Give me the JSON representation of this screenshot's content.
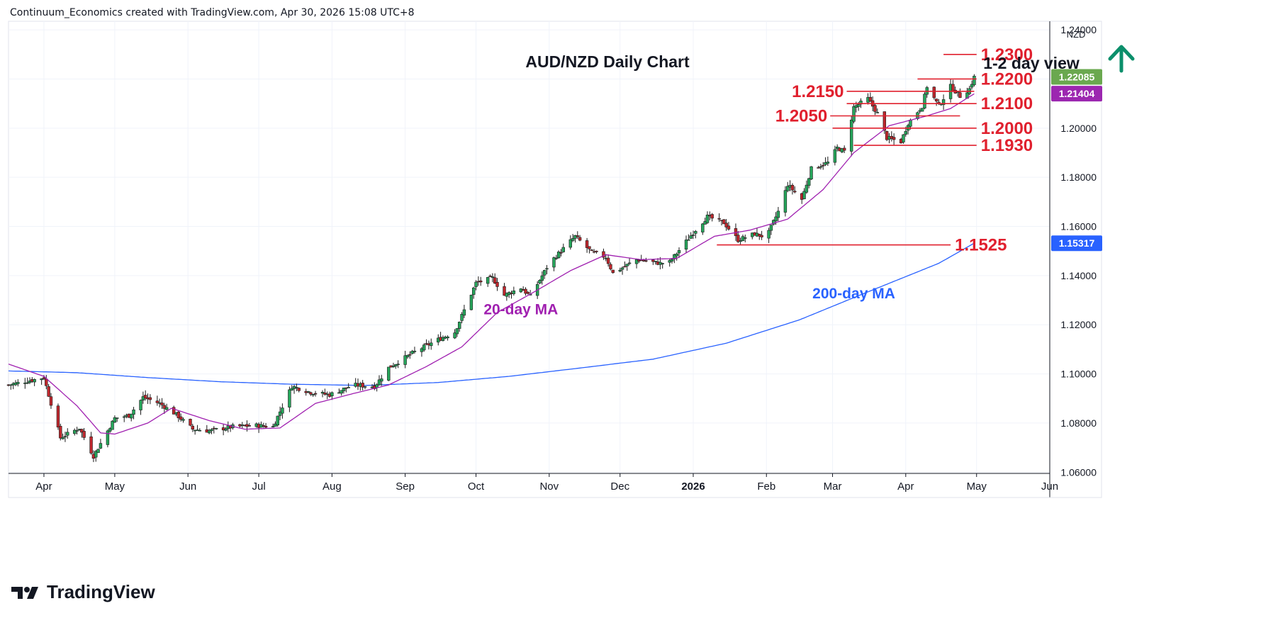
{
  "attribution": "Continuum_Economics created with TradingView.com, Apr 30, 2026 15:08 UTC+8",
  "brand": {
    "name": "TradingView",
    "icon": "tradingview-logo-icon"
  },
  "currency": "NZD",
  "colors": {
    "up": "#26a65b",
    "down": "#c0272d",
    "ma20": "#a020b0",
    "ma200": "#2962ff",
    "level": "#e0202e",
    "arrow": "#0b8f6b",
    "last_price_bg": "#6aa84f",
    "ma20_tag_bg": "#9c27b0",
    "ma200_tag_bg": "#2962ff"
  },
  "chart_data": {
    "type": "candlestick",
    "title": "AUD/NZD Daily Chart",
    "view_label": "1-2 day view",
    "view_direction": "up",
    "x_ticks": [
      "Apr",
      "May",
      "Jun",
      "Jul",
      "Aug",
      "Sep",
      "Oct",
      "Nov",
      "Dec",
      "2026",
      "Feb",
      "Mar",
      "Apr",
      "May",
      "Jun"
    ],
    "x_tick_dates": [
      "2025-04-01",
      "2025-05-01",
      "2025-06-01",
      "2025-07-01",
      "2025-08-01",
      "2025-09-01",
      "2025-10-01",
      "2025-11-01",
      "2025-12-01",
      "2026-01-01",
      "2026-02-01",
      "2026-03-01",
      "2026-04-01",
      "2026-05-01",
      "2026-06-01"
    ],
    "x_range": [
      "2025-03-17",
      "2026-06-01"
    ],
    "y_ticks": [
      "1.24000",
      "1.22000",
      "1.20000",
      "1.18000",
      "1.16000",
      "1.14000",
      "1.12000",
      "1.10000",
      "1.08000",
      "1.06000"
    ],
    "ylim": [
      1.0595,
      1.2435
    ],
    "grid": true,
    "close_anchors": [
      [
        "2025-03-17",
        1.0955
      ],
      [
        "2025-04-01",
        1.0985
      ],
      [
        "2025-04-08",
        1.074
      ],
      [
        "2025-04-16",
        1.078
      ],
      [
        "2025-04-22",
        1.0665
      ],
      [
        "2025-05-01",
        1.082
      ],
      [
        "2025-05-07",
        1.083
      ],
      [
        "2025-05-13",
        1.0905
      ],
      [
        "2025-05-20",
        1.088
      ],
      [
        "2025-05-27",
        1.0835
      ],
      [
        "2025-06-03",
        1.0775
      ],
      [
        "2025-06-10",
        1.0768
      ],
      [
        "2025-06-20",
        1.0785
      ],
      [
        "2025-06-30",
        1.079
      ],
      [
        "2025-07-07",
        1.0785
      ],
      [
        "2025-07-15",
        1.095
      ],
      [
        "2025-07-23",
        1.0925
      ],
      [
        "2025-07-31",
        1.0915
      ],
      [
        "2025-08-10",
        1.0955
      ],
      [
        "2025-08-19",
        1.0948
      ],
      [
        "2025-08-25",
        1.1025
      ],
      [
        "2025-09-05",
        1.109
      ],
      [
        "2025-09-15",
        1.114
      ],
      [
        "2025-09-22",
        1.117
      ],
      [
        "2025-10-01",
        1.137
      ],
      [
        "2025-10-08",
        1.139
      ],
      [
        "2025-10-13",
        1.132
      ],
      [
        "2025-10-20",
        1.135
      ],
      [
        "2025-10-24",
        1.1315
      ],
      [
        "2025-11-01",
        1.145
      ],
      [
        "2025-11-07",
        1.151
      ],
      [
        "2025-11-12",
        1.156
      ],
      [
        "2025-11-19",
        1.1495
      ],
      [
        "2025-11-25",
        1.1475
      ],
      [
        "2025-11-28",
        1.141
      ],
      [
        "2025-12-08",
        1.1465
      ],
      [
        "2025-12-18",
        1.145
      ],
      [
        "2025-12-22",
        1.1455
      ],
      [
        "2026-01-01",
        1.1575
      ],
      [
        "2026-01-07",
        1.164
      ],
      [
        "2026-01-14",
        1.1615
      ],
      [
        "2026-01-20",
        1.1545
      ],
      [
        "2026-01-27",
        1.157
      ],
      [
        "2026-02-01",
        1.1555
      ],
      [
        "2026-02-06",
        1.166
      ],
      [
        "2026-02-10",
        1.177
      ],
      [
        "2026-02-16",
        1.171
      ],
      [
        "2026-02-20",
        1.1835
      ],
      [
        "2026-02-27",
        1.186
      ],
      [
        "2026-03-03",
        1.192
      ],
      [
        "2026-03-06",
        1.1905
      ],
      [
        "2026-03-10",
        1.2085
      ],
      [
        "2026-03-16",
        1.212
      ],
      [
        "2026-03-20",
        1.206
      ],
      [
        "2026-03-24",
        1.196
      ],
      [
        "2026-03-30",
        1.1945
      ],
      [
        "2026-04-02",
        1.202
      ],
      [
        "2026-04-08",
        1.209
      ],
      [
        "2026-04-10",
        1.217
      ],
      [
        "2026-04-15",
        1.209
      ],
      [
        "2026-04-20",
        1.217
      ],
      [
        "2026-04-24",
        1.213
      ],
      [
        "2026-04-28",
        1.216
      ],
      [
        "2026-04-30",
        1.2208
      ]
    ],
    "ma20_anchors": [
      [
        "2025-03-17",
        1.104
      ],
      [
        "2025-04-01",
        1.099
      ],
      [
        "2025-04-15",
        1.087
      ],
      [
        "2025-04-25",
        1.076
      ],
      [
        "2025-05-01",
        1.0755
      ],
      [
        "2025-05-15",
        1.08
      ],
      [
        "2025-05-25",
        1.086
      ],
      [
        "2025-06-10",
        1.081
      ],
      [
        "2025-06-25",
        1.0775
      ],
      [
        "2025-07-10",
        1.078
      ],
      [
        "2025-07-25",
        1.088
      ],
      [
        "2025-08-10",
        1.092
      ],
      [
        "2025-08-25",
        1.0955
      ],
      [
        "2025-09-10",
        1.103
      ],
      [
        "2025-09-25",
        1.111
      ],
      [
        "2025-10-10",
        1.125
      ],
      [
        "2025-10-25",
        1.133
      ],
      [
        "2025-11-10",
        1.142
      ],
      [
        "2025-11-25",
        1.1485
      ],
      [
        "2025-12-10",
        1.1465
      ],
      [
        "2025-12-25",
        1.147
      ],
      [
        "2026-01-10",
        1.156
      ],
      [
        "2026-01-25",
        1.1585
      ],
      [
        "2026-02-10",
        1.163
      ],
      [
        "2026-02-25",
        1.175
      ],
      [
        "2026-03-10",
        1.19
      ],
      [
        "2026-03-25",
        1.201
      ],
      [
        "2026-04-10",
        1.205
      ],
      [
        "2026-04-20",
        1.208
      ],
      [
        "2026-04-30",
        1.214
      ]
    ],
    "ma200_anchors": [
      [
        "2025-03-17",
        1.1012
      ],
      [
        "2025-04-15",
        1.1005
      ],
      [
        "2025-05-15",
        1.0985
      ],
      [
        "2025-06-15",
        1.0968
      ],
      [
        "2025-07-15",
        1.0958
      ],
      [
        "2025-08-15",
        1.0953
      ],
      [
        "2025-09-15",
        1.0965
      ],
      [
        "2025-10-15",
        1.099
      ],
      [
        "2025-11-15",
        1.1025
      ],
      [
        "2025-12-15",
        1.106
      ],
      [
        "2026-01-15",
        1.1125
      ],
      [
        "2026-02-15",
        1.122
      ],
      [
        "2026-03-15",
        1.133
      ],
      [
        "2026-04-15",
        1.145
      ],
      [
        "2026-04-30",
        1.1532
      ]
    ],
    "levels": [
      {
        "label": "1.2300",
        "value": 1.23,
        "start": "2026-04-17",
        "end": "2026-05-01",
        "label_side": "right"
      },
      {
        "label": "1.2200",
        "value": 1.22,
        "start": "2026-04-06",
        "end": "2026-05-01",
        "label_side": "right"
      },
      {
        "label": "1.2150",
        "value": 1.215,
        "start": "2026-03-07",
        "end": "2026-04-30",
        "label_side": "left"
      },
      {
        "label": "1.2100",
        "value": 1.21,
        "start": "2026-03-07",
        "end": "2026-05-01",
        "label_side": "right"
      },
      {
        "label": "1.2050",
        "value": 1.205,
        "start": "2026-02-28",
        "end": "2026-04-24",
        "label_side": "left"
      },
      {
        "label": "1.2000",
        "value": 1.2,
        "start": "2026-03-01",
        "end": "2026-05-01",
        "label_side": "right"
      },
      {
        "label": "1.1930",
        "value": 1.193,
        "start": "2026-03-10",
        "end": "2026-05-01",
        "label_side": "right"
      },
      {
        "label": "1.1525",
        "value": 1.1525,
        "start": "2026-01-11",
        "end": "2026-04-20",
        "label_side": "right"
      }
    ],
    "series_labels": [
      {
        "name": "20-day MA",
        "key": "ma20"
      },
      {
        "name": "200-day MA",
        "key": "ma200"
      }
    ],
    "price_tags": [
      {
        "label": "1.22085",
        "value": 1.22085,
        "key": "last_price_bg"
      },
      {
        "label": "1.21404",
        "value": 1.21404,
        "key": "ma20_tag_bg"
      },
      {
        "label": "1.15317",
        "value": 1.15317,
        "key": "ma200_tag_bg"
      }
    ]
  }
}
